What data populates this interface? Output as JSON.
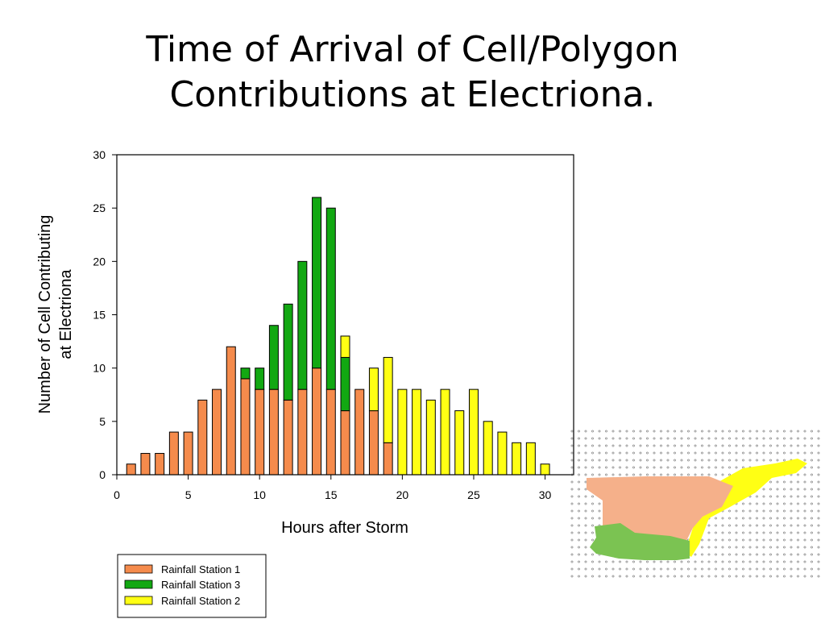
{
  "slide": {
    "title_line1": "Time of Arrival of Cell/Polygon",
    "title_line2": "Contributions at Electriona."
  },
  "chart_data": {
    "type": "bar",
    "stacked": true,
    "xlabel": "Hours after Storm",
    "ylabel_line1": "Number of Cell Contributing",
    "ylabel_line2": "at Electriona",
    "xlim": [
      0,
      32
    ],
    "ylim": [
      0,
      30
    ],
    "xticks": [
      0,
      5,
      10,
      15,
      20,
      25,
      30
    ],
    "yticks": [
      0,
      5,
      10,
      15,
      20,
      25,
      30
    ],
    "grid": false,
    "legend_position": "bottom-left, below plot",
    "x": [
      1,
      2,
      3,
      4,
      5,
      6,
      7,
      8,
      9,
      10,
      11,
      12,
      13,
      14,
      15,
      16,
      17,
      18,
      19,
      20,
      21,
      22,
      23,
      24,
      25,
      26,
      27,
      28,
      29,
      30
    ],
    "series": [
      {
        "name": "Rainfall Station 1",
        "color": "#F58B4C",
        "values": [
          1,
          2,
          2,
          4,
          4,
          7,
          8,
          12,
          9,
          8,
          8,
          7,
          8,
          10,
          8,
          6,
          8,
          6,
          3,
          0,
          0,
          0,
          0,
          0,
          0,
          0,
          0,
          0,
          0,
          0
        ]
      },
      {
        "name": "Rainfall Station 3",
        "color": "#12A812",
        "values": [
          0,
          0,
          0,
          0,
          0,
          0,
          0,
          0,
          1,
          2,
          6,
          9,
          12,
          16,
          17,
          5,
          0,
          0,
          0,
          0,
          0,
          0,
          0,
          0,
          0,
          0,
          0,
          0,
          0,
          0
        ]
      },
      {
        "name": "Rainfall Station 2",
        "color": "#FFFF14",
        "values": [
          0,
          0,
          0,
          0,
          0,
          0,
          0,
          0,
          0,
          0,
          0,
          0,
          0,
          0,
          0,
          2,
          0,
          4,
          8,
          8,
          8,
          7,
          8,
          6,
          8,
          5,
          4,
          3,
          3,
          1
        ]
      }
    ],
    "legend_order": [
      "Rainfall Station 1",
      "Rainfall Station 3",
      "Rainfall Station 2"
    ]
  }
}
